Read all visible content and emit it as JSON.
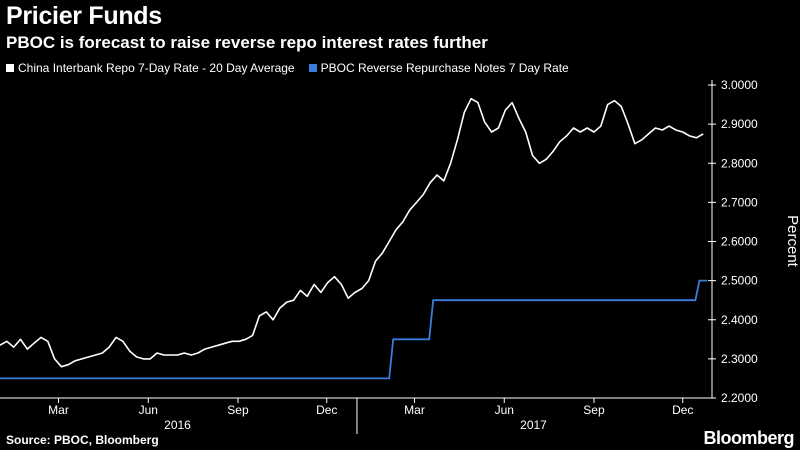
{
  "title": "Pricier Funds",
  "subtitle": "PBOC is forecast to raise reverse repo interest rates further",
  "source": "Source: PBOC, Bloomberg",
  "brand": "Bloomberg",
  "colors": {
    "background": "#000000",
    "series1": "#ffffff",
    "series2": "#3b7ddd",
    "axis": "#ffffff"
  },
  "chart_data": {
    "type": "line",
    "ylabel": "Percent",
    "ylim": [
      2.2,
      3.0
    ],
    "yticks": [
      "3.0000",
      "2.9000",
      "2.8000",
      "2.7000",
      "2.6000",
      "2.5000",
      "2.4000",
      "2.3000",
      "2.2000"
    ],
    "ytick_values": [
      3.0,
      2.9,
      2.8,
      2.7,
      2.6,
      2.5,
      2.4,
      2.3,
      2.2
    ],
    "x_range": [
      "2016-01-01",
      "2017-12-31"
    ],
    "xticks": [
      {
        "label": "Mar",
        "date": "2016-03-01"
      },
      {
        "label": "Jun",
        "date": "2016-06-01"
      },
      {
        "label": "Sep",
        "date": "2016-09-01"
      },
      {
        "label": "Dec",
        "date": "2016-12-01"
      },
      {
        "label": "Mar",
        "date": "2017-03-01"
      },
      {
        "label": "Jun",
        "date": "2017-06-01"
      },
      {
        "label": "Sep",
        "date": "2017-09-01"
      },
      {
        "label": "Dec",
        "date": "2017-12-01"
      }
    ],
    "year_labels": [
      {
        "label": "2016",
        "date": "2016-07-01"
      },
      {
        "label": "2017",
        "date": "2017-07-01"
      }
    ],
    "year_divider": "2017-01-01",
    "legend_position": "top-left",
    "grid": false,
    "series": [
      {
        "name": "China Interbank Repo 7-Day Rate - 20 Day Average",
        "color": "#ffffff",
        "points": [
          [
            "2016-01-01",
            2.335
          ],
          [
            "2016-01-08",
            2.345
          ],
          [
            "2016-01-15",
            2.33
          ],
          [
            "2016-01-22",
            2.35
          ],
          [
            "2016-01-29",
            2.325
          ],
          [
            "2016-02-05",
            2.34
          ],
          [
            "2016-02-12",
            2.355
          ],
          [
            "2016-02-19",
            2.345
          ],
          [
            "2016-02-26",
            2.3
          ],
          [
            "2016-03-04",
            2.28
          ],
          [
            "2016-03-11",
            2.285
          ],
          [
            "2016-03-18",
            2.295
          ],
          [
            "2016-03-25",
            2.3
          ],
          [
            "2016-04-01",
            2.305
          ],
          [
            "2016-04-08",
            2.31
          ],
          [
            "2016-04-15",
            2.315
          ],
          [
            "2016-04-22",
            2.33
          ],
          [
            "2016-04-29",
            2.355
          ],
          [
            "2016-05-06",
            2.345
          ],
          [
            "2016-05-13",
            2.32
          ],
          [
            "2016-05-20",
            2.305
          ],
          [
            "2016-05-27",
            2.3
          ],
          [
            "2016-06-03",
            2.3
          ],
          [
            "2016-06-10",
            2.315
          ],
          [
            "2016-06-17",
            2.31
          ],
          [
            "2016-06-24",
            2.31
          ],
          [
            "2016-07-01",
            2.31
          ],
          [
            "2016-07-08",
            2.315
          ],
          [
            "2016-07-15",
            2.31
          ],
          [
            "2016-07-22",
            2.315
          ],
          [
            "2016-07-29",
            2.325
          ],
          [
            "2016-08-05",
            2.33
          ],
          [
            "2016-08-12",
            2.335
          ],
          [
            "2016-08-19",
            2.34
          ],
          [
            "2016-08-26",
            2.345
          ],
          [
            "2016-09-02",
            2.345
          ],
          [
            "2016-09-09",
            2.35
          ],
          [
            "2016-09-16",
            2.36
          ],
          [
            "2016-09-23",
            2.41
          ],
          [
            "2016-09-30",
            2.42
          ],
          [
            "2016-10-07",
            2.4
          ],
          [
            "2016-10-14",
            2.43
          ],
          [
            "2016-10-21",
            2.445
          ],
          [
            "2016-10-28",
            2.45
          ],
          [
            "2016-11-04",
            2.475
          ],
          [
            "2016-11-11",
            2.46
          ],
          [
            "2016-11-18",
            2.49
          ],
          [
            "2016-11-25",
            2.47
          ],
          [
            "2016-12-02",
            2.495
          ],
          [
            "2016-12-09",
            2.51
          ],
          [
            "2016-12-16",
            2.49
          ],
          [
            "2016-12-23",
            2.455
          ],
          [
            "2016-12-30",
            2.47
          ],
          [
            "2017-01-06",
            2.48
          ],
          [
            "2017-01-13",
            2.5
          ],
          [
            "2017-01-20",
            2.55
          ],
          [
            "2017-01-27",
            2.57
          ],
          [
            "2017-02-03",
            2.6
          ],
          [
            "2017-02-10",
            2.63
          ],
          [
            "2017-02-17",
            2.65
          ],
          [
            "2017-02-24",
            2.68
          ],
          [
            "2017-03-03",
            2.7
          ],
          [
            "2017-03-10",
            2.72
          ],
          [
            "2017-03-17",
            2.75
          ],
          [
            "2017-03-24",
            2.77
          ],
          [
            "2017-03-31",
            2.755
          ],
          [
            "2017-04-07",
            2.8
          ],
          [
            "2017-04-14",
            2.86
          ],
          [
            "2017-04-21",
            2.93
          ],
          [
            "2017-04-28",
            2.965
          ],
          [
            "2017-05-05",
            2.955
          ],
          [
            "2017-05-12",
            2.905
          ],
          [
            "2017-05-19",
            2.88
          ],
          [
            "2017-05-26",
            2.89
          ],
          [
            "2017-06-02",
            2.935
          ],
          [
            "2017-06-09",
            2.955
          ],
          [
            "2017-06-16",
            2.915
          ],
          [
            "2017-06-23",
            2.88
          ],
          [
            "2017-06-30",
            2.82
          ],
          [
            "2017-07-07",
            2.8
          ],
          [
            "2017-07-14",
            2.81
          ],
          [
            "2017-07-21",
            2.83
          ],
          [
            "2017-07-28",
            2.855
          ],
          [
            "2017-08-04",
            2.87
          ],
          [
            "2017-08-11",
            2.89
          ],
          [
            "2017-08-18",
            2.88
          ],
          [
            "2017-08-25",
            2.89
          ],
          [
            "2017-09-01",
            2.88
          ],
          [
            "2017-09-08",
            2.895
          ],
          [
            "2017-09-15",
            2.95
          ],
          [
            "2017-09-22",
            2.96
          ],
          [
            "2017-09-29",
            2.945
          ],
          [
            "2017-10-06",
            2.9
          ],
          [
            "2017-10-13",
            2.85
          ],
          [
            "2017-10-20",
            2.86
          ],
          [
            "2017-10-27",
            2.875
          ],
          [
            "2017-11-03",
            2.89
          ],
          [
            "2017-11-10",
            2.885
          ],
          [
            "2017-11-17",
            2.895
          ],
          [
            "2017-11-24",
            2.885
          ],
          [
            "2017-12-01",
            2.88
          ],
          [
            "2017-12-08",
            2.87
          ],
          [
            "2017-12-15",
            2.865
          ],
          [
            "2017-12-22",
            2.875
          ]
        ]
      },
      {
        "name": "PBOC Reverse Repurchase Notes 7 Day Rate",
        "color": "#3b7ddd",
        "steps": [
          [
            "2016-01-01",
            2.25
          ],
          [
            "2017-02-03",
            2.35
          ],
          [
            "2017-03-16",
            2.45
          ],
          [
            "2017-12-14",
            2.5
          ],
          [
            "2017-12-22",
            2.5
          ]
        ]
      }
    ]
  }
}
